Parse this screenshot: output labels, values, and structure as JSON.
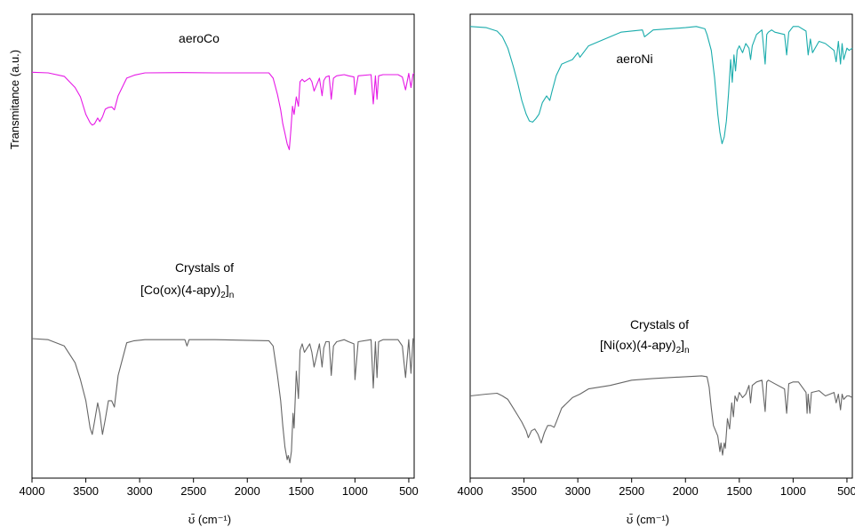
{
  "chart_data": [
    {
      "type": "line",
      "xlabel": "ʊ̄ (cm⁻¹)",
      "ylabel": "Transmitance (a.u.)",
      "x_reversed": true,
      "xlim": [
        4000,
        450
      ],
      "ylim": [
        0,
        1
      ],
      "xticks": [
        4000,
        3500,
        3000,
        2500,
        2000,
        1500,
        1000,
        500
      ],
      "y_tick_labels": false,
      "grid": false,
      "series": [
        {
          "name": "aeroCo",
          "color": "#e619e6",
          "x": [
            4000,
            3850,
            3700,
            3600,
            3550,
            3500,
            3460,
            3440,
            3420,
            3390,
            3370,
            3345,
            3320,
            3290,
            3260,
            3235,
            3200,
            3120,
            3050,
            2950,
            2600,
            2300,
            1800,
            1760,
            1720,
            1690,
            1670,
            1650,
            1630,
            1610,
            1595,
            1580,
            1565,
            1545,
            1525,
            1510,
            1490,
            1470,
            1420,
            1400,
            1380,
            1330,
            1305,
            1290,
            1270,
            1240,
            1220,
            1200,
            1170,
            1100,
            1060,
            1010,
            1000,
            970,
            850,
            830,
            810,
            795,
            780,
            740,
            600,
            560,
            530,
            500,
            480,
            460,
            450
          ],
          "y": [
            0.99,
            0.985,
            0.955,
            0.86,
            0.78,
            0.63,
            0.56,
            0.54,
            0.55,
            0.6,
            0.57,
            0.61,
            0.675,
            0.69,
            0.695,
            0.67,
            0.79,
            0.94,
            0.965,
            0.985,
            0.987,
            0.985,
            0.985,
            0.94,
            0.8,
            0.67,
            0.55,
            0.47,
            0.38,
            0.33,
            0.5,
            0.7,
            0.63,
            0.78,
            0.7,
            0.91,
            0.93,
            0.91,
            0.94,
            0.91,
            0.83,
            0.94,
            0.79,
            0.92,
            0.95,
            0.96,
            0.76,
            0.94,
            0.96,
            0.97,
            0.96,
            0.95,
            0.8,
            0.96,
            0.97,
            0.72,
            0.96,
            0.76,
            0.96,
            0.97,
            0.97,
            0.95,
            0.84,
            0.98,
            0.86,
            0.975,
            0.98
          ]
        },
        {
          "name": "[Co(ox)(4-apy)2]n",
          "color": "#666666",
          "x": [
            4000,
            3850,
            3700,
            3600,
            3550,
            3500,
            3460,
            3440,
            3420,
            3390,
            3370,
            3345,
            3320,
            3290,
            3260,
            3235,
            3200,
            3120,
            3050,
            2950,
            2580,
            2560,
            2540,
            2300,
            1800,
            1760,
            1720,
            1690,
            1670,
            1650,
            1630,
            1620,
            1605,
            1590,
            1575,
            1565,
            1545,
            1525,
            1510,
            1490,
            1470,
            1420,
            1400,
            1380,
            1330,
            1305,
            1290,
            1270,
            1240,
            1220,
            1200,
            1170,
            1100,
            1060,
            1010,
            1000,
            970,
            850,
            830,
            810,
            795,
            780,
            740,
            600,
            560,
            530,
            500,
            480,
            460,
            450
          ],
          "y": [
            0.595,
            0.59,
            0.56,
            0.48,
            0.4,
            0.3,
            0.17,
            0.14,
            0.2,
            0.29,
            0.24,
            0.14,
            0.21,
            0.3,
            0.3,
            0.27,
            0.42,
            0.575,
            0.585,
            0.59,
            0.59,
            0.56,
            0.59,
            0.59,
            0.585,
            0.56,
            0.42,
            0.3,
            0.18,
            0.08,
            0.02,
            0.04,
            0.005,
            0.06,
            0.24,
            0.17,
            0.44,
            0.31,
            0.54,
            0.57,
            0.53,
            0.57,
            0.53,
            0.46,
            0.57,
            0.46,
            0.55,
            0.58,
            0.58,
            0.42,
            0.56,
            0.58,
            0.59,
            0.58,
            0.57,
            0.4,
            0.58,
            0.59,
            0.36,
            0.58,
            0.41,
            0.58,
            0.59,
            0.59,
            0.56,
            0.41,
            0.59,
            0.43,
            0.595,
            0.595
          ]
        }
      ],
      "annotations": {
        "aeroCo": "aeroCo",
        "crystals_prefix": "Crystals of",
        "formula_main": "[Co(ox)(4-apy)",
        "formula_sub1": "2",
        "formula_bracket": "]",
        "formula_sub2": "n"
      }
    },
    {
      "type": "line",
      "xlabel": "ʊ̄ (cm⁻¹)",
      "x_reversed": true,
      "xlim": [
        4000,
        450
      ],
      "ylim": [
        0,
        1
      ],
      "xticks": [
        4000,
        3500,
        3000,
        2500,
        2000,
        1500,
        1000,
        500
      ],
      "y_tick_labels": false,
      "grid": false,
      "series": [
        {
          "name": "aeroNi",
          "color": "#1aacac",
          "x": [
            4000,
            3850,
            3750,
            3700,
            3650,
            3600,
            3560,
            3520,
            3480,
            3450,
            3420,
            3390,
            3360,
            3330,
            3290,
            3260,
            3240,
            3200,
            3150,
            3050,
            3000,
            2980,
            2900,
            2600,
            2400,
            2380,
            2300,
            2000,
            1900,
            1820,
            1800,
            1760,
            1730,
            1700,
            1680,
            1660,
            1640,
            1620,
            1600,
            1580,
            1565,
            1550,
            1535,
            1520,
            1500,
            1470,
            1440,
            1410,
            1395,
            1380,
            1340,
            1290,
            1260,
            1245,
            1230,
            1200,
            1170,
            1080,
            1060,
            1040,
            1000,
            950,
            880,
            860,
            840,
            820,
            760,
            700,
            620,
            600,
            580,
            560,
            545,
            530,
            500,
            480,
            450
          ],
          "y": [
            0.985,
            0.98,
            0.965,
            0.94,
            0.89,
            0.81,
            0.74,
            0.66,
            0.6,
            0.57,
            0.565,
            0.58,
            0.6,
            0.65,
            0.68,
            0.66,
            0.7,
            0.77,
            0.82,
            0.84,
            0.87,
            0.85,
            0.9,
            0.96,
            0.97,
            0.94,
            0.97,
            0.98,
            0.985,
            0.975,
            0.95,
            0.88,
            0.76,
            0.6,
            0.52,
            0.47,
            0.5,
            0.57,
            0.69,
            0.84,
            0.74,
            0.86,
            0.79,
            0.88,
            0.9,
            0.87,
            0.91,
            0.89,
            0.84,
            0.9,
            0.95,
            0.97,
            0.82,
            0.95,
            0.96,
            0.97,
            0.96,
            0.95,
            0.86,
            0.96,
            0.985,
            0.985,
            0.965,
            0.86,
            0.93,
            0.87,
            0.92,
            0.91,
            0.88,
            0.83,
            0.92,
            0.82,
            0.91,
            0.84,
            0.89,
            0.88,
            0.89
          ]
        },
        {
          "name": "[Ni(ox)(4-apy)2]n",
          "color": "#666666",
          "x": [
            4000,
            3850,
            3750,
            3700,
            3650,
            3600,
            3560,
            3520,
            3480,
            3460,
            3430,
            3400,
            3370,
            3340,
            3310,
            3280,
            3250,
            3220,
            3200,
            3150,
            3050,
            2980,
            2900,
            2700,
            2500,
            2300,
            2000,
            1850,
            1800,
            1780,
            1760,
            1740,
            1700,
            1680,
            1670,
            1655,
            1640,
            1630,
            1610,
            1590,
            1570,
            1555,
            1540,
            1520,
            1500,
            1470,
            1440,
            1410,
            1395,
            1380,
            1340,
            1290,
            1260,
            1245,
            1230,
            1200,
            1170,
            1080,
            1060,
            1040,
            1000,
            950,
            880,
            870,
            860,
            845,
            830,
            760,
            700,
            620,
            600,
            580,
            560,
            545,
            530,
            500,
            480,
            450
          ],
          "y": [
            0.37,
            0.38,
            0.385,
            0.37,
            0.35,
            0.3,
            0.26,
            0.22,
            0.17,
            0.13,
            0.17,
            0.18,
            0.15,
            0.1,
            0.16,
            0.2,
            0.2,
            0.19,
            0.22,
            0.3,
            0.36,
            0.38,
            0.41,
            0.43,
            0.46,
            0.47,
            0.48,
            0.485,
            0.48,
            0.42,
            0.3,
            0.2,
            0.14,
            0.05,
            0.1,
            0.03,
            0.1,
            0.07,
            0.24,
            0.18,
            0.33,
            0.25,
            0.37,
            0.34,
            0.39,
            0.36,
            0.38,
            0.43,
            0.33,
            0.43,
            0.45,
            0.46,
            0.28,
            0.45,
            0.46,
            0.45,
            0.44,
            0.41,
            0.27,
            0.44,
            0.45,
            0.45,
            0.39,
            0.27,
            0.38,
            0.27,
            0.39,
            0.4,
            0.37,
            0.39,
            0.33,
            0.38,
            0.29,
            0.38,
            0.35,
            0.37,
            0.37,
            0.36
          ]
        }
      ],
      "annotations": {
        "aeroNi": "aeroNi",
        "crystals_prefix": "Crystals of",
        "formula_main": "[Ni(ox)(4-apy)",
        "formula_sub1": "2",
        "formula_bracket": "]",
        "formula_sub2": "n"
      }
    }
  ]
}
